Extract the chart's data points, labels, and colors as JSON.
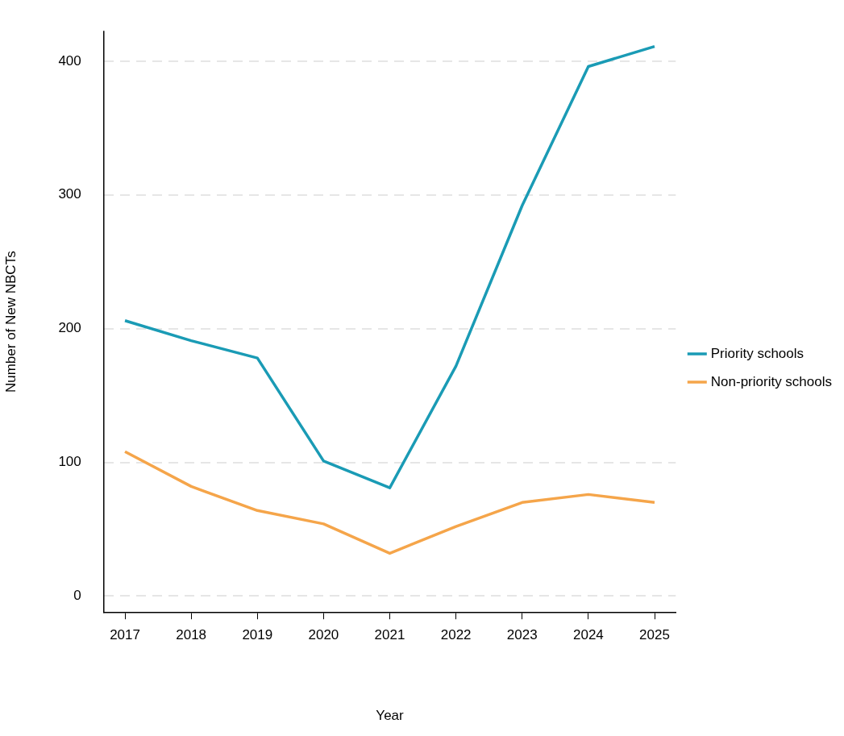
{
  "chart_data": {
    "type": "line",
    "xlabel": "Year",
    "ylabel": "Number of New NBCTs",
    "x": [
      2017,
      2018,
      2019,
      2020,
      2021,
      2022,
      2023,
      2024,
      2025
    ],
    "series": [
      {
        "name": "Priority schools",
        "color": "#1a9bb5",
        "values": [
          206,
          191,
          178,
          101,
          81,
          172,
          292,
          396,
          411
        ]
      },
      {
        "name": "Non-priority schools",
        "color": "#f5a54a",
        "values": [
          108,
          82,
          64,
          54,
          32,
          52,
          70,
          76,
          70
        ]
      }
    ],
    "xlim": [
      2016.68,
      2025.32
    ],
    "xticks": [
      2017,
      2018,
      2019,
      2020,
      2021,
      2022,
      2023,
      2024,
      2025
    ],
    "ylim": [
      -12.5,
      422.7
    ],
    "yticks": [
      0,
      100,
      200,
      300,
      400
    ],
    "grid": "y",
    "legend": "right",
    "marker": "none",
    "line_style": "solid"
  }
}
